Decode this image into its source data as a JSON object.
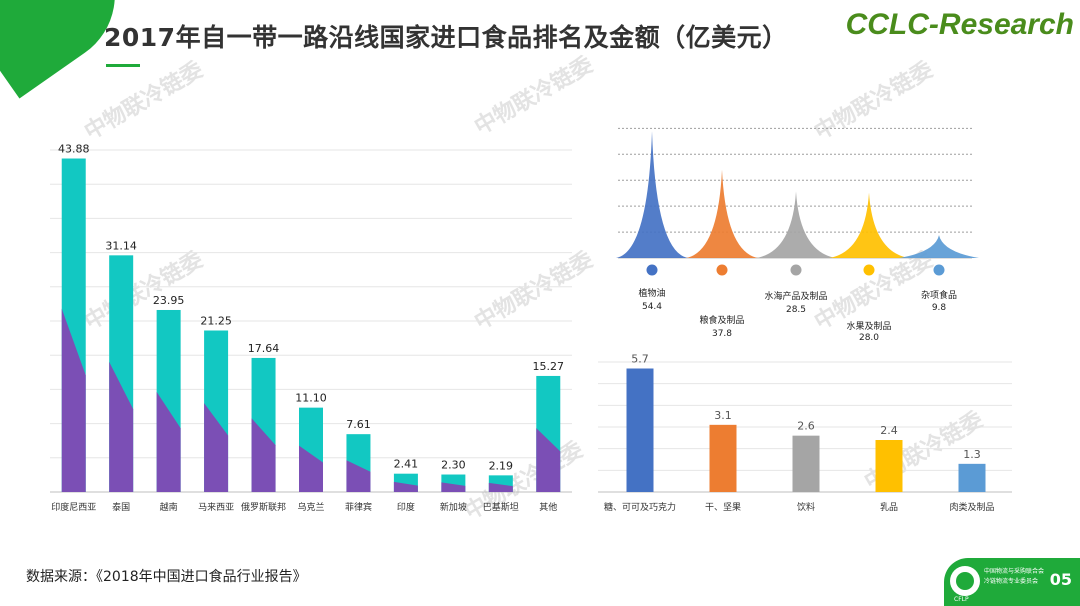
{
  "title": "2017年自一带一路沿线国家进口食品排名及金额（亿美元）",
  "brand": "CCLC-Research",
  "watermark": "中物联冷链委",
  "source": "数据来源：《2018年中国进口食品行业报告》",
  "footer": {
    "org_line1": "中国物流与采购联合会",
    "org_line2": "冷链物流专业委员会",
    "abbr": "CFLP",
    "page_number": "05"
  },
  "colors": {
    "green": "#1faa3a",
    "teal": "#12c8c2",
    "purple": "#7b4fb5"
  },
  "chart_data": [
    {
      "type": "bar",
      "title": "2017年自一带一路沿线国家进口食品排名及金额（亿美元）",
      "categories": [
        "印度尼西亚",
        "泰国",
        "越南",
        "马来西亚",
        "俄罗斯联邦",
        "乌克兰",
        "菲律宾",
        "印度",
        "新加坡",
        "巴基斯坦",
        "其他"
      ],
      "values": [
        43.88,
        31.14,
        23.95,
        21.25,
        17.64,
        11.1,
        7.61,
        2.41,
        2.3,
        2.19,
        15.27
      ],
      "labels": [
        "43.88",
        "31.14",
        "23.95",
        "21.25",
        "17.64",
        "11.10",
        "7.61",
        "2.41",
        "2.30",
        "2.19",
        "15.27"
      ],
      "ylim": [
        0,
        45
      ],
      "grid": true
    },
    {
      "type": "area",
      "subtype": "peak",
      "categories": [
        "植物油",
        "粮食及制品",
        "水海产品及制品",
        "水果及制品",
        "杂项食品"
      ],
      "values": [
        54.4,
        37.8,
        28.5,
        28.0,
        9.8
      ],
      "labels": [
        "54.4",
        "37.8",
        "28.5",
        "28.0",
        "9.8"
      ],
      "colors": [
        "#4472c4",
        "#ed7d31",
        "#a5a5a5",
        "#ffc000",
        "#5b9bd5"
      ],
      "ylim": [
        0,
        60
      ],
      "grid": true
    },
    {
      "type": "bar",
      "categories": [
        "糖、可可及巧克力",
        "干、坚果",
        "饮料",
        "乳品",
        "肉类及制品"
      ],
      "values": [
        5.7,
        3.1,
        2.6,
        2.4,
        1.3
      ],
      "labels": [
        "5.7",
        "3.1",
        "2.6",
        "2.4",
        "1.3"
      ],
      "colors": [
        "#4472c4",
        "#ed7d31",
        "#a5a5a5",
        "#ffc000",
        "#5b9bd5"
      ],
      "ylim": [
        0,
        6
      ],
      "grid": true
    }
  ]
}
